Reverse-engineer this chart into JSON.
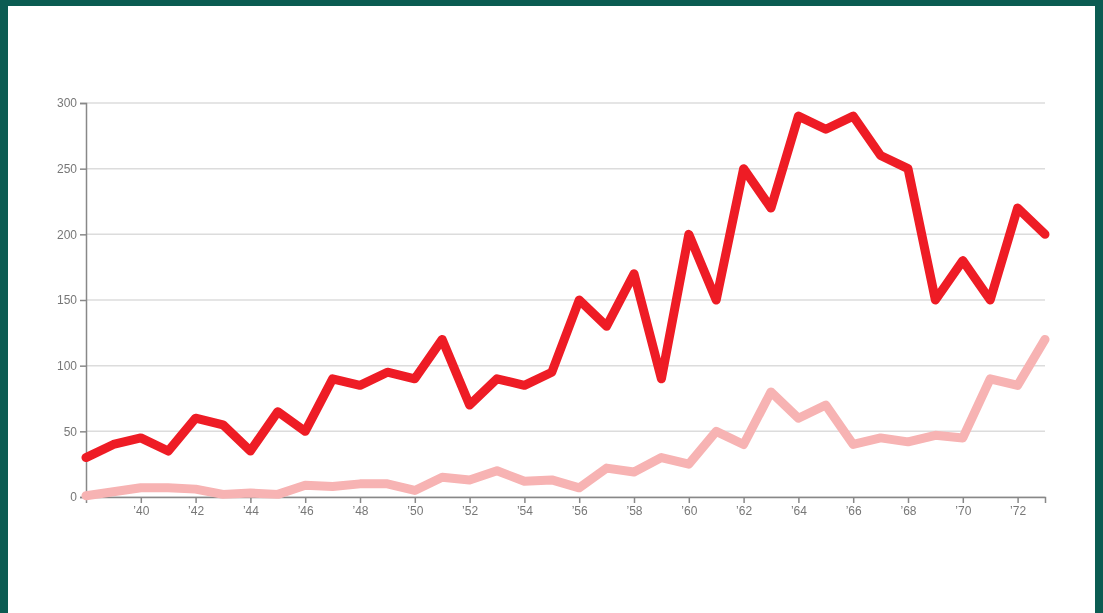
{
  "chart_data": {
    "type": "line",
    "x": [
      1938,
      1939,
      1940,
      1941,
      1942,
      1943,
      1944,
      1945,
      1946,
      1947,
      1948,
      1949,
      1950,
      1951,
      1952,
      1953,
      1954,
      1955,
      1956,
      1957,
      1958,
      1959,
      1960,
      1961,
      1962,
      1963,
      1964,
      1965,
      1966,
      1967,
      1968,
      1969,
      1970,
      1971,
      1972,
      1973
    ],
    "series": [
      {
        "color": "#ee1c25",
        "values": [
          30,
          40,
          45,
          35,
          60,
          55,
          35,
          65,
          50,
          90,
          85,
          95,
          90,
          120,
          70,
          90,
          85,
          95,
          150,
          130,
          170,
          90,
          200,
          150,
          250,
          220,
          290,
          280,
          290,
          260,
          250,
          150,
          180,
          150,
          220,
          200
        ]
      },
      {
        "color": "#f7b3b3",
        "values": [
          1,
          4,
          7,
          7,
          6,
          2,
          3,
          2,
          9,
          8,
          10,
          10,
          5,
          15,
          13,
          20,
          12,
          13,
          7,
          22,
          19,
          30,
          25,
          50,
          40,
          80,
          60,
          70,
          40,
          45,
          42,
          47,
          45,
          90,
          85,
          120
        ]
      }
    ],
    "xlim": [
      1938,
      1973
    ],
    "xticks": [
      {
        "value": 1940,
        "label": "’40"
      },
      {
        "value": 1942,
        "label": "’42"
      },
      {
        "value": 1944,
        "label": "’44"
      },
      {
        "value": 1946,
        "label": "’46"
      },
      {
        "value": 1948,
        "label": "’48"
      },
      {
        "value": 1950,
        "label": "’50"
      },
      {
        "value": 1952,
        "label": "’52"
      },
      {
        "value": 1954,
        "label": "’54"
      },
      {
        "value": 1956,
        "label": "’56"
      },
      {
        "value": 1958,
        "label": "’58"
      },
      {
        "value": 1960,
        "label": "’60"
      },
      {
        "value": 1962,
        "label": "’62"
      },
      {
        "value": 1964,
        "label": "’64"
      },
      {
        "value": 1966,
        "label": "’66"
      },
      {
        "value": 1968,
        "label": "’68"
      },
      {
        "value": 1970,
        "label": "’70"
      },
      {
        "value": 1972,
        "label": "’72"
      }
    ],
    "ylim": [
      0,
      300
    ],
    "yticks": [
      0,
      50,
      100,
      150,
      200,
      250,
      300
    ],
    "grid": "y",
    "marker": "none",
    "line_style": "solid"
  }
}
